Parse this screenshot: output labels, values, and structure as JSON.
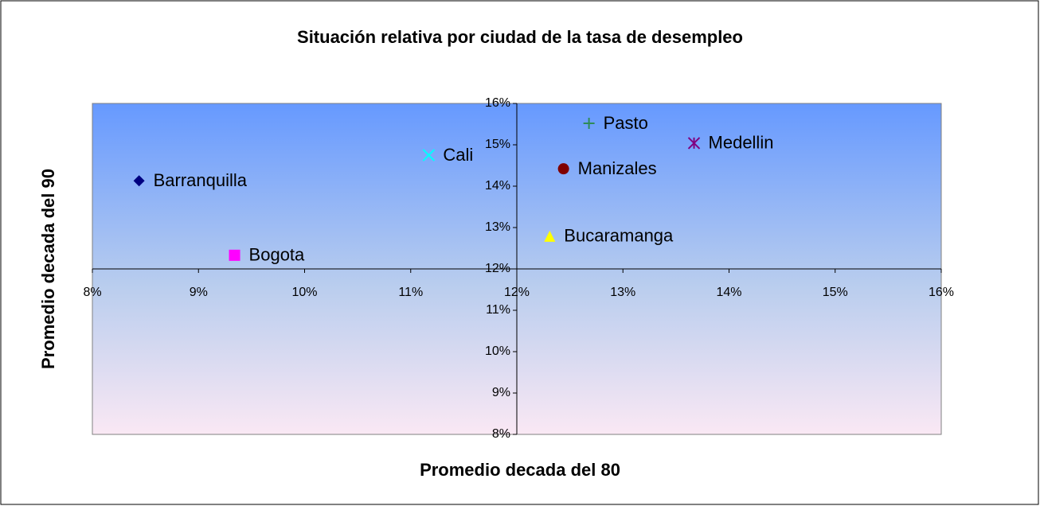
{
  "chart_data": {
    "type": "scatter",
    "title": "Situación relativa por ciudad de la tasa de desempleo",
    "x_label": "Promedio decada del 80",
    "y_label": "Promedio decada del 90",
    "xlim": [
      8,
      16
    ],
    "ylim": [
      8,
      16
    ],
    "xticks": [
      {
        "value": 8,
        "label": "8%"
      },
      {
        "value": 9,
        "label": "9%"
      },
      {
        "value": 10,
        "label": "10%"
      },
      {
        "value": 11,
        "label": "11%"
      },
      {
        "value": 12,
        "label": "12%"
      },
      {
        "value": 13,
        "label": "13%"
      },
      {
        "value": 14,
        "label": "14%"
      },
      {
        "value": 15,
        "label": "15%"
      },
      {
        "value": 16,
        "label": "16%"
      }
    ],
    "yticks": [
      {
        "value": 8,
        "label": "8%"
      },
      {
        "value": 9,
        "label": "9%"
      },
      {
        "value": 10,
        "label": "10%"
      },
      {
        "value": 11,
        "label": "11%"
      },
      {
        "value": 12,
        "label": "12%"
      },
      {
        "value": 13,
        "label": "13%"
      },
      {
        "value": 14,
        "label": "14%"
      },
      {
        "value": 15,
        "label": "15%"
      },
      {
        "value": 16,
        "label": "16%"
      }
    ],
    "grid": false,
    "series": [
      {
        "name": "Barranquilla",
        "color": "#000080",
        "marker": "diamond",
        "x": [
          8.44
        ],
        "values": [
          14.13
        ]
      },
      {
        "name": "Bogota",
        "color": "#ff00ff",
        "marker": "square",
        "x": [
          9.34
        ],
        "values": [
          12.33
        ]
      },
      {
        "name": "Cali",
        "color": "#00ffff",
        "marker": "x",
        "x": [
          11.17
        ],
        "values": [
          14.75
        ]
      },
      {
        "name": "Pasto",
        "color": "#2e8b57",
        "marker": "plus",
        "x": [
          12.68
        ],
        "values": [
          15.52
        ]
      },
      {
        "name": "Medellin",
        "color": "#800080",
        "marker": "star",
        "x": [
          13.67
        ],
        "values": [
          15.04
        ]
      },
      {
        "name": "Manizales",
        "color": "#800000",
        "marker": "circle",
        "x": [
          12.44
        ],
        "values": [
          14.42
        ]
      },
      {
        "name": "Bucaramanga",
        "color": "#ffff00",
        "marker": "triangle",
        "x": [
          12.31
        ],
        "values": [
          12.79
        ]
      }
    ]
  }
}
